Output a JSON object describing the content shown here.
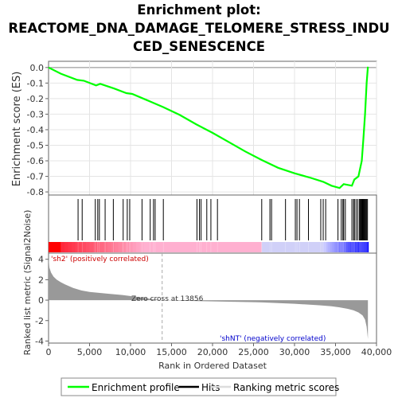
{
  "title_lines": [
    "Enrichment plot:",
    "REACTOME_DNA_DAMAGE_TELOMERE_STRESS_INDU",
    "CED_SENESCENCE"
  ],
  "colors": {
    "enrichment_line": "#00ff00",
    "hit_line": "#000000",
    "ranking_fill": "#999999",
    "zero_line": "#aaaaaa",
    "pos_label": "#cc0000",
    "neg_label": "#0000cc",
    "heat_red": "#ff0000",
    "heat_pink": "#ffb0d0",
    "heat_lavender": "#d0d0f8",
    "heat_blue": "#0000ff"
  },
  "legend": {
    "items": [
      {
        "label": "Enrichment profile",
        "icon": "green-line"
      },
      {
        "label": "Hits",
        "icon": "black-line"
      },
      {
        "label": "Ranking metric scores",
        "icon": "gray-line"
      }
    ]
  },
  "chart_data": [
    {
      "type": "line",
      "title": "Enrichment plot: REACTOME_DNA_DAMAGE_TELOMERE_STRESS_INDUCED_SENESCENCE",
      "ylabel": "Enrichment score (ES)",
      "xlim": [
        0,
        40000
      ],
      "ylim": [
        -0.82,
        0.04
      ],
      "yticks": [
        "0.0",
        "-0.1",
        "-0.2",
        "-0.3",
        "-0.4",
        "-0.5",
        "-0.6",
        "-0.7",
        "-0.8"
      ],
      "grid": true,
      "series": [
        {
          "x": [
            0,
            1500,
            3500,
            4300,
            5800,
            6300,
            8000,
            9500,
            10200,
            12000,
            14000,
            16000,
            18000,
            20000,
            22000,
            24000,
            26000,
            28000,
            30000,
            32000,
            33500,
            34500,
            35500,
            36000,
            37000,
            37300,
            37800,
            38200,
            38400,
            38600,
            38800,
            38950
          ],
          "y": [
            0.0,
            -0.04,
            -0.08,
            -0.085,
            -0.115,
            -0.105,
            -0.135,
            -0.165,
            -0.17,
            -0.21,
            -0.255,
            -0.305,
            -0.365,
            -0.42,
            -0.48,
            -0.54,
            -0.595,
            -0.645,
            -0.68,
            -0.71,
            -0.735,
            -0.76,
            -0.775,
            -0.75,
            -0.76,
            -0.72,
            -0.7,
            -0.6,
            -0.46,
            -0.3,
            -0.1,
            0.005
          ]
        }
      ]
    },
    {
      "type": "scatter",
      "name": "hits",
      "xlim": [
        0,
        40000
      ],
      "hits": [
        3600,
        4100,
        5700,
        6000,
        6200,
        6900,
        7900,
        9100,
        9600,
        9900,
        11400,
        12400,
        12800,
        13000,
        14000,
        18100,
        18400,
        18600,
        19300,
        19800,
        20600,
        26000,
        27000,
        27200,
        28900,
        30100,
        30300,
        30600,
        31700,
        33200,
        33500,
        33800,
        35300,
        35700,
        35900,
        36000,
        36200,
        37000,
        37200,
        37300,
        37500,
        37700,
        37900,
        38000,
        38100,
        38200,
        38300,
        38400,
        38500,
        38600,
        38700,
        38800,
        38900
      ]
    },
    {
      "type": "heatmap",
      "xlim": [
        0,
        40000
      ],
      "segments": [
        {
          "x": [
            0,
            1500
          ],
          "level": "red"
        },
        {
          "x": [
            1500,
            12000
          ],
          "level": "red-pink"
        },
        {
          "x": [
            12000,
            26000
          ],
          "level": "pink"
        },
        {
          "x": [
            26000,
            33500
          ],
          "level": "lavender"
        },
        {
          "x": [
            33500,
            39000
          ],
          "level": "blue"
        }
      ]
    },
    {
      "type": "area",
      "ylabel": "Ranked list metric (Signal2Noise)",
      "xlabel": "Rank in Ordered Dataset",
      "xlim": [
        0,
        40000
      ],
      "ylim": [
        -4.2,
        4.6
      ],
      "xticks": [
        "0",
        "5,000",
        "10,000",
        "15,000",
        "20,000",
        "25,000",
        "30,000",
        "35,000",
        "40,000"
      ],
      "yticks": [
        "4",
        "2",
        "0",
        "-2",
        "-4"
      ],
      "x": [
        0,
        100,
        300,
        600,
        1000,
        1500,
        2000,
        3000,
        4000,
        5000,
        7000,
        9000,
        11000,
        12500,
        13856,
        16000,
        20000,
        25000,
        26000,
        30000,
        33000,
        34500,
        35500,
        36500,
        37200,
        37800,
        38300,
        38600,
        38800,
        38950
      ],
      "values": [
        4.2,
        3.2,
        2.7,
        2.3,
        2.0,
        1.75,
        1.55,
        1.2,
        0.95,
        0.8,
        0.65,
        0.5,
        0.3,
        0.12,
        0.0,
        -0.05,
        -0.12,
        -0.2,
        -0.22,
        -0.35,
        -0.5,
        -0.6,
        -0.7,
        -0.85,
        -1.0,
        -1.2,
        -1.5,
        -1.9,
        -2.6,
        -3.8
      ],
      "annotations": {
        "zero_cross": "Zero cross at 13856",
        "positive": "'sh2' (positively correlated)",
        "negative": "'shNT' (negatively correlated)"
      }
    }
  ]
}
